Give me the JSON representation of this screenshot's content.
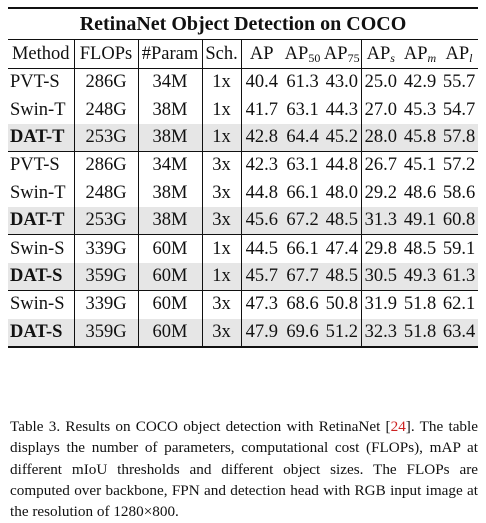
{
  "table": {
    "title": "RetinaNet Object Detection on COCO",
    "headers": {
      "method": "Method",
      "flops": "FLOPs",
      "params": "#Param",
      "sched": "Sch.",
      "ap": "AP",
      "ap50": "AP",
      "ap50_sub": "50",
      "ap75": "AP",
      "ap75_sub": "75",
      "aps": "AP",
      "aps_sub": "s",
      "apm": "AP",
      "apm_sub": "m",
      "apl": "AP",
      "apl_sub": "l"
    },
    "rows": [
      {
        "method": "PVT-S",
        "flops": "286G",
        "params": "34M",
        "sched": "1x",
        "ap": "40.4",
        "ap50": "61.3",
        "ap75": "43.0",
        "aps": "25.0",
        "apm": "42.9",
        "apl": "55.7"
      },
      {
        "method": "Swin-T",
        "flops": "248G",
        "params": "38M",
        "sched": "1x",
        "ap": "41.7",
        "ap50": "63.1",
        "ap75": "44.3",
        "aps": "27.0",
        "apm": "45.3",
        "apl": "54.7"
      },
      {
        "method": "DAT-T",
        "flops": "253G",
        "params": "38M",
        "sched": "1x",
        "ap": "42.8",
        "ap50": "64.4",
        "ap75": "45.2",
        "aps": "28.0",
        "apm": "45.8",
        "apl": "57.8"
      },
      {
        "method": "PVT-S",
        "flops": "286G",
        "params": "34M",
        "sched": "3x",
        "ap": "42.3",
        "ap50": "63.1",
        "ap75": "44.8",
        "aps": "26.7",
        "apm": "45.1",
        "apl": "57.2"
      },
      {
        "method": "Swin-T",
        "flops": "248G",
        "params": "38M",
        "sched": "3x",
        "ap": "44.8",
        "ap50": "66.1",
        "ap75": "48.0",
        "aps": "29.2",
        "apm": "48.6",
        "apl": "58.6"
      },
      {
        "method": "DAT-T",
        "flops": "253G",
        "params": "38M",
        "sched": "3x",
        "ap": "45.6",
        "ap50": "67.2",
        "ap75": "48.5",
        "aps": "31.3",
        "apm": "49.1",
        "apl": "60.8"
      },
      {
        "method": "Swin-S",
        "flops": "339G",
        "params": "60M",
        "sched": "1x",
        "ap": "44.5",
        "ap50": "66.1",
        "ap75": "47.4",
        "aps": "29.8",
        "apm": "48.5",
        "apl": "59.1"
      },
      {
        "method": "DAT-S",
        "flops": "359G",
        "params": "60M",
        "sched": "1x",
        "ap": "45.7",
        "ap50": "67.7",
        "ap75": "48.5",
        "aps": "30.5",
        "apm": "49.3",
        "apl": "61.3"
      },
      {
        "method": "Swin-S",
        "flops": "339G",
        "params": "60M",
        "sched": "3x",
        "ap": "47.3",
        "ap50": "68.6",
        "ap75": "50.8",
        "aps": "31.9",
        "apm": "51.8",
        "apl": "62.1"
      },
      {
        "method": "DAT-S",
        "flops": "359G",
        "params": "60M",
        "sched": "3x",
        "ap": "47.9",
        "ap50": "69.6",
        "ap75": "51.2",
        "aps": "32.3",
        "apm": "51.8",
        "apl": "63.4"
      }
    ]
  },
  "caption": {
    "lead": "Table 3. Results on COCO object detection with RetinaNet [",
    "ref": "24",
    "rest": "]. The table displays the number of parameters, computational cost (FLOPs), mAP at different mIoU thresholds and different object sizes. The FLOPs are computed over backbone, FPN and detection head with RGB input image at the resolution of 1280×800."
  }
}
